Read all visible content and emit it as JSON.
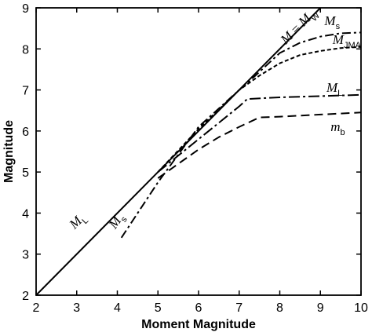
{
  "chart_data": {
    "type": "line",
    "title": "",
    "xlabel": "Moment Magnitude",
    "ylabel": "Magnitude",
    "xlim": [
      2,
      10
    ],
    "ylim": [
      2,
      9
    ],
    "x_ticks": [
      "2",
      "3",
      "4",
      "5",
      "6",
      "7",
      "8",
      "9",
      "10"
    ],
    "y_ticks": [
      "2",
      "3",
      "4",
      "5",
      "6",
      "7",
      "8",
      "9"
    ],
    "grid": false,
    "legend": "none",
    "series": [
      {
        "key": "mw",
        "style": "solid",
        "x": [
          2,
          9
        ],
        "y": [
          2,
          9
        ]
      },
      {
        "key": "ms",
        "style": "dashdot",
        "x": [
          4.1,
          5.0,
          6.0,
          7.0,
          7.4,
          8.0,
          8.5,
          9.0,
          9.5,
          10.0
        ],
        "y": [
          3.4,
          4.75,
          6.1,
          7.0,
          7.35,
          7.9,
          8.15,
          8.3,
          8.38,
          8.4
        ]
      },
      {
        "key": "mjma",
        "style": "short-dash",
        "x": [
          5.0,
          6.0,
          7.0,
          7.5,
          8.0,
          8.5,
          9.0,
          9.5,
          10.0
        ],
        "y": [
          5.0,
          6.05,
          7.0,
          7.35,
          7.65,
          7.85,
          7.95,
          8.02,
          8.05
        ]
      },
      {
        "key": "ml",
        "style": "long-dashdot",
        "x": [
          5.0,
          6.0,
          7.0,
          7.2,
          8.0,
          9.0,
          10.0
        ],
        "y": [
          5.0,
          5.8,
          6.6,
          6.78,
          6.82,
          6.85,
          6.88
        ]
      },
      {
        "key": "mb",
        "style": "long-dash",
        "x": [
          5.0,
          6.0,
          6.5,
          7.0,
          7.5,
          8.0,
          9.0,
          10.0
        ],
        "y": [
          4.85,
          5.55,
          5.85,
          6.1,
          6.33,
          6.35,
          6.4,
          6.45
        ]
      }
    ],
    "annotations": [
      {
        "key": "mw_label",
        "base": "M",
        "equals": " = ",
        "base2": "M",
        "sub": "W",
        "x": 8.15,
        "y": 8.1,
        "rotate": -45
      },
      {
        "key": "ms_curve_label",
        "base": "M",
        "sub": "s",
        "x": 9.1,
        "y": 8.58
      },
      {
        "key": "mjma_label",
        "base": "M",
        "sub": "JMA",
        "x": 9.3,
        "y": 8.12
      },
      {
        "key": "ml_curve_label",
        "base": "M",
        "sub": "L",
        "x": 9.15,
        "y": 6.95
      },
      {
        "key": "mb_label",
        "base": "m",
        "sub": "b",
        "x": 9.25,
        "y": 6.0
      },
      {
        "key": "ml_line_label",
        "base": "M",
        "sub": "L",
        "x": 2.95,
        "y": 3.6,
        "rotate": -45
      },
      {
        "key": "ms_line_label",
        "base": "M",
        "sub": "s",
        "x": 3.95,
        "y": 3.6,
        "rotate": -55
      }
    ]
  }
}
